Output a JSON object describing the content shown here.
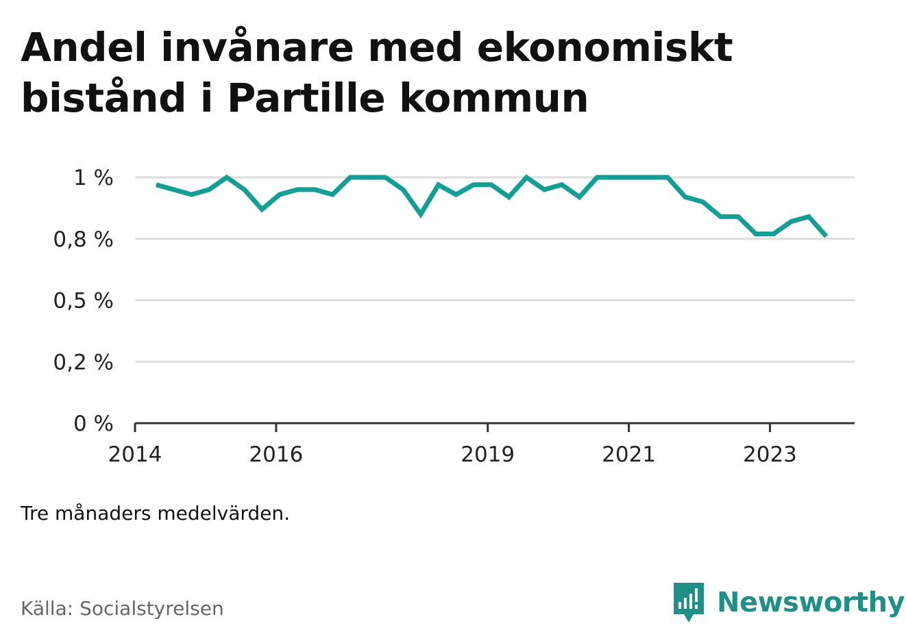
{
  "header": {
    "title": "Andel invånare med ekonomiskt bistånd i Partille kommun"
  },
  "footer": {
    "note": "Tre månaders medelvärden.",
    "source": "Källa: Socialstyrelsen",
    "brand": "Newsworthy"
  },
  "colors": {
    "line": "#159e96",
    "brand": "#1f8f88",
    "grid": "#dddddd",
    "axis": "#333333"
  },
  "icons": {
    "brand": "newsworthy-logo-icon"
  },
  "chart_data": {
    "type": "line",
    "title": "Andel invånare med ekonomiskt bistånd i Partille kommun",
    "xlabel": "",
    "ylabel": "",
    "x_range": [
      2014.0,
      2024.2
    ],
    "ylim": [
      0,
      1.0
    ],
    "y_ticks": [
      {
        "value": 0,
        "label": "0 %"
      },
      {
        "value": 0.25,
        "label": "0,2 %"
      },
      {
        "value": 0.5,
        "label": "0,5 %"
      },
      {
        "value": 0.75,
        "label": "0,8 %"
      },
      {
        "value": 1.0,
        "label": "1 %"
      }
    ],
    "x_ticks": [
      {
        "value": 2014,
        "label": "2014"
      },
      {
        "value": 2016,
        "label": "2016"
      },
      {
        "value": 2019,
        "label": "2019"
      },
      {
        "value": 2021,
        "label": "2021"
      },
      {
        "value": 2023,
        "label": "2023"
      }
    ],
    "grid": true,
    "series": [
      {
        "x": [
          2014.3,
          2014.55,
          2014.8,
          2015.05,
          2015.3,
          2015.55,
          2015.8,
          2016.05,
          2016.3,
          2016.55,
          2016.8,
          2017.05,
          2017.3,
          2017.55,
          2017.8,
          2018.05,
          2018.3,
          2018.55,
          2018.8,
          2019.05,
          2019.3,
          2019.55,
          2019.8,
          2020.05,
          2020.3,
          2020.55,
          2020.8,
          2021.05,
          2021.3,
          2021.55,
          2021.8,
          2022.05,
          2022.3,
          2022.55,
          2022.8,
          2023.05,
          2023.3,
          2023.55,
          2023.8
        ],
        "values": [
          0.97,
          0.95,
          0.93,
          0.95,
          1.0,
          0.95,
          0.87,
          0.93,
          0.95,
          0.95,
          0.93,
          1.0,
          1.0,
          1.0,
          0.95,
          0.85,
          0.97,
          0.93,
          0.97,
          0.97,
          0.92,
          1.0,
          0.95,
          0.97,
          0.92,
          1.0,
          1.0,
          1.0,
          1.0,
          1.0,
          0.92,
          0.9,
          0.84,
          0.84,
          0.77,
          0.77,
          0.82,
          0.84,
          0.76
        ]
      }
    ]
  }
}
